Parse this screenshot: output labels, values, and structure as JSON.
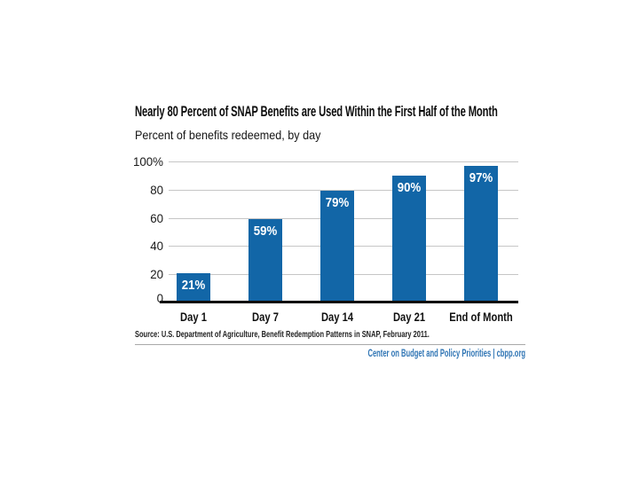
{
  "chart_data": {
    "type": "bar",
    "title": "Nearly 80 Percent of SNAP Benefits are Used Within the First Half of the Month",
    "subtitle": "Percent of benefits redeemed, by day",
    "categories": [
      "Day 1",
      "Day 7",
      "Day 14",
      "Day 21",
      "End of Month"
    ],
    "values": [
      21,
      59,
      79,
      90,
      97
    ],
    "value_labels": [
      "21%",
      "59%",
      "79%",
      "90%",
      "97%"
    ],
    "y_ticks": [
      "100%",
      "80",
      "60",
      "40",
      "20",
      "0"
    ],
    "y_tick_values": [
      100,
      80,
      60,
      40,
      20,
      0
    ],
    "ylim": [
      0,
      100
    ],
    "grid": "horizontal",
    "legend": "none",
    "bar_color": "#1266a7",
    "value_label_color": "#ffffff",
    "grid_color": "#c6c6c6",
    "axis_color": "#0a0a0a"
  },
  "source": {
    "text": "Source: U.S. Department of Agriculture, Benefit Redemption Patterns in SNAP, February 2011."
  },
  "footer": {
    "text": "Center on Budget and Policy Priorities | cbpp.org",
    "color": "#2e74b4"
  }
}
